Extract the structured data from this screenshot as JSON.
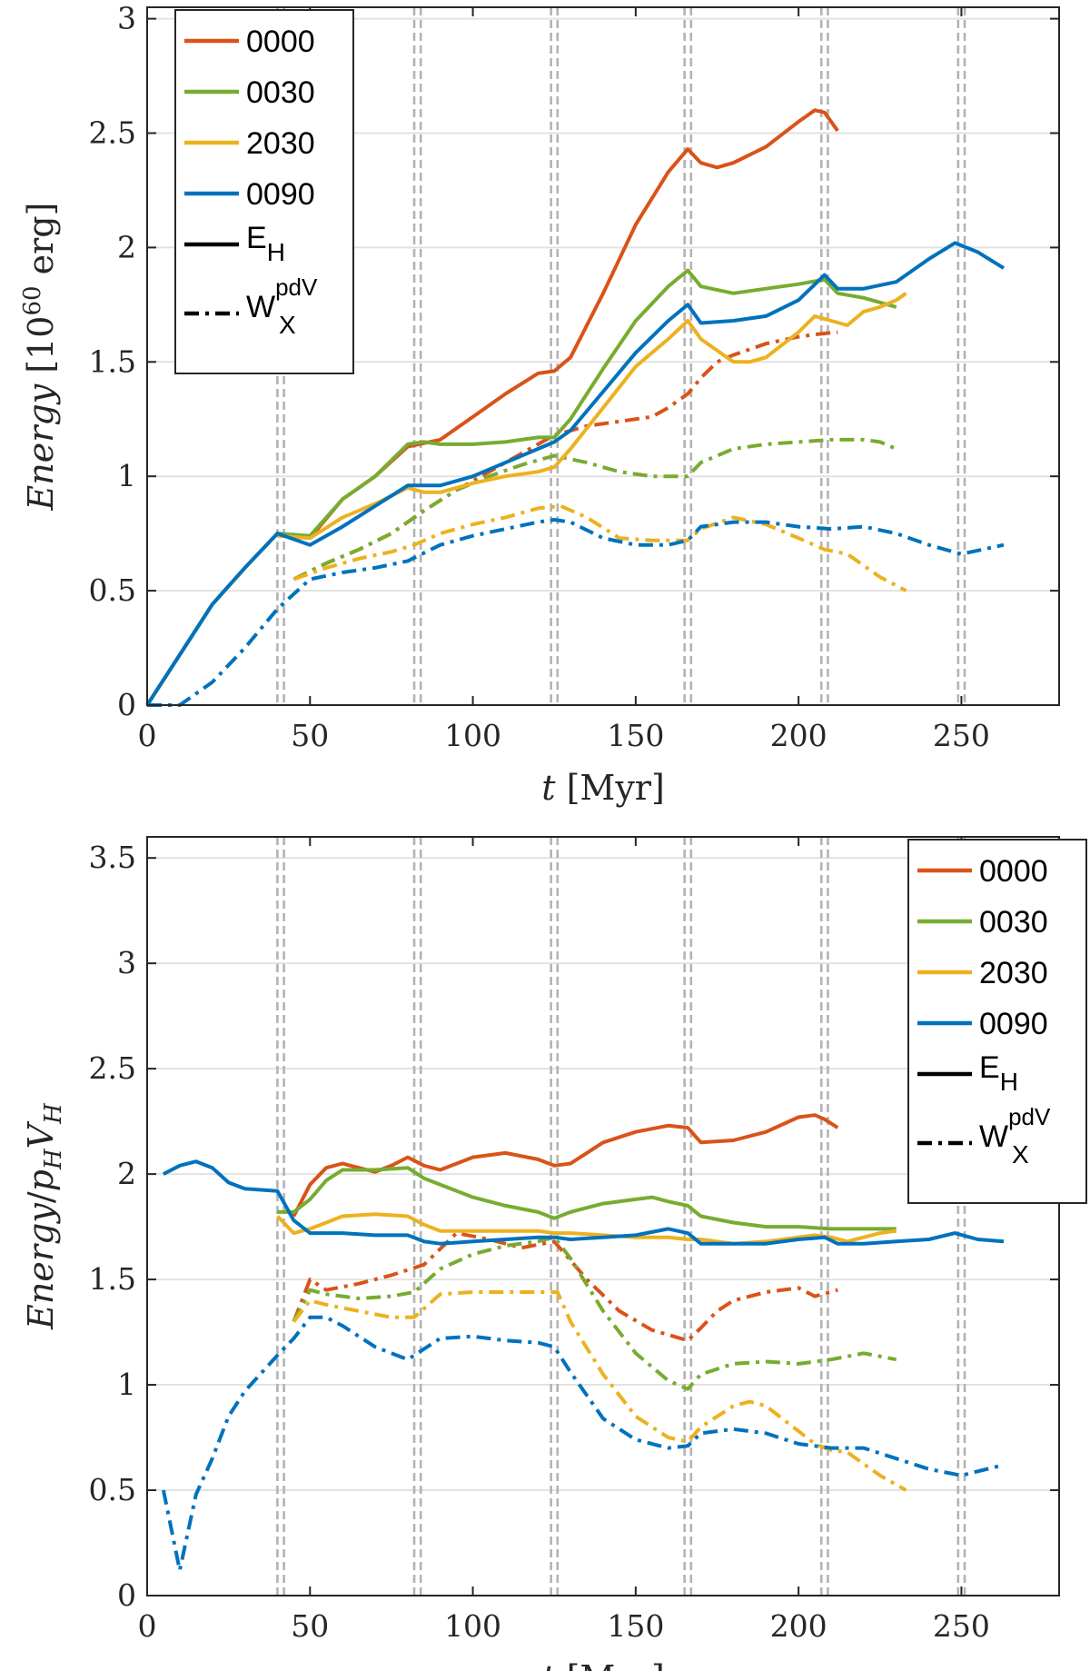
{
  "colors": {
    "0000": "#D95319",
    "0030": "#77AC30",
    "2030": "#EDB120",
    "0090": "#0072BD",
    "grid": "#e2e2e2",
    "vline": "#b3b3b3",
    "axis": "#262626"
  },
  "legend": {
    "runs": [
      "0000",
      "0030",
      "2030",
      "0090"
    ],
    "solid_label": "E",
    "solid_sub": "H",
    "dashed_label": "W",
    "dashed_sub": "X",
    "dashed_sup": "pdV"
  },
  "chart_data": [
    {
      "type": "line",
      "xlabel": "t [Myr]",
      "ylabel": "Energy [10^60 erg]",
      "xlim": [
        0,
        280
      ],
      "ylim": [
        0,
        3.05
      ],
      "xticks": [
        0,
        50,
        100,
        150,
        200,
        250
      ],
      "yticks": [
        0,
        0.5,
        1,
        1.5,
        2,
        2.5,
        3
      ],
      "xtick_labels": [
        "0",
        "50",
        "100",
        "150",
        "200",
        "250"
      ],
      "ytick_labels": [
        "0",
        "0.5",
        "1",
        "1.5",
        "2",
        "2.5",
        "3"
      ],
      "grid": "horizontal",
      "legend_position": "top-left",
      "vertical_markers": [
        40,
        42,
        82,
        84,
        124,
        126,
        165,
        167,
        207,
        209,
        249,
        251
      ],
      "series": [
        {
          "name": "0000",
          "style": "solid",
          "x": [
            0,
            10,
            20,
            30,
            40,
            50,
            60,
            70,
            80,
            90,
            100,
            110,
            120,
            125,
            130,
            140,
            150,
            160,
            166,
            170,
            175,
            180,
            190,
            200,
            205,
            208,
            212
          ],
          "y": [
            0,
            0.22,
            0.44,
            0.6,
            0.75,
            0.73,
            0.9,
            1.0,
            1.13,
            1.16,
            1.26,
            1.36,
            1.45,
            1.46,
            1.52,
            1.8,
            2.1,
            2.33,
            2.43,
            2.37,
            2.35,
            2.37,
            2.44,
            2.55,
            2.6,
            2.59,
            2.51
          ]
        },
        {
          "name": "0000",
          "style": "dashdot",
          "x": [
            45,
            55,
            65,
            75,
            85,
            95,
            105,
            115,
            125,
            135,
            145,
            155,
            160,
            166,
            170,
            175,
            180,
            190,
            200,
            205,
            212
          ],
          "y": [
            0.55,
            0.62,
            0.68,
            0.75,
            0.85,
            0.94,
            1.02,
            1.1,
            1.18,
            1.22,
            1.24,
            1.26,
            1.3,
            1.36,
            1.43,
            1.5,
            1.53,
            1.58,
            1.61,
            1.62,
            1.63
          ]
        },
        {
          "name": "0030",
          "style": "solid",
          "x": [
            0,
            10,
            20,
            30,
            40,
            50,
            60,
            70,
            80,
            85,
            90,
            100,
            110,
            120,
            125,
            130,
            140,
            150,
            160,
            166,
            170,
            180,
            190,
            200,
            208,
            212,
            220,
            230
          ],
          "y": [
            0,
            0.22,
            0.44,
            0.6,
            0.75,
            0.74,
            0.9,
            1.0,
            1.14,
            1.15,
            1.14,
            1.14,
            1.15,
            1.17,
            1.17,
            1.25,
            1.47,
            1.68,
            1.83,
            1.9,
            1.83,
            1.8,
            1.82,
            1.84,
            1.86,
            1.8,
            1.78,
            1.74
          ]
        },
        {
          "name": "0030",
          "style": "dashdot",
          "x": [
            45,
            55,
            65,
            75,
            85,
            95,
            105,
            115,
            125,
            135,
            145,
            155,
            166,
            170,
            180,
            190,
            200,
            210,
            220,
            225,
            230
          ],
          "y": [
            0.55,
            0.62,
            0.68,
            0.75,
            0.85,
            0.94,
            1.0,
            1.05,
            1.09,
            1.06,
            1.02,
            1.0,
            1.0,
            1.06,
            1.12,
            1.14,
            1.15,
            1.16,
            1.16,
            1.15,
            1.12
          ]
        },
        {
          "name": "2030",
          "style": "solid",
          "x": [
            40,
            50,
            60,
            70,
            80,
            85,
            90,
            100,
            110,
            120,
            125,
            130,
            140,
            150,
            160,
            166,
            170,
            175,
            180,
            185,
            190,
            200,
            205,
            210,
            215,
            220,
            225,
            230,
            233
          ],
          "y": [
            0.74,
            0.73,
            0.82,
            0.88,
            0.95,
            0.93,
            0.93,
            0.97,
            1.0,
            1.02,
            1.04,
            1.12,
            1.3,
            1.48,
            1.6,
            1.68,
            1.6,
            1.55,
            1.5,
            1.5,
            1.52,
            1.63,
            1.7,
            1.68,
            1.66,
            1.72,
            1.74,
            1.77,
            1.8
          ]
        },
        {
          "name": "2030",
          "style": "dashdot",
          "x": [
            45,
            55,
            65,
            75,
            82,
            90,
            100,
            110,
            120,
            127,
            135,
            145,
            155,
            166,
            170,
            180,
            190,
            200,
            208,
            215,
            225,
            233
          ],
          "y": [
            0.55,
            0.6,
            0.64,
            0.67,
            0.7,
            0.75,
            0.79,
            0.82,
            0.86,
            0.87,
            0.82,
            0.73,
            0.72,
            0.72,
            0.77,
            0.82,
            0.79,
            0.73,
            0.68,
            0.66,
            0.56,
            0.5
          ]
        },
        {
          "name": "0090",
          "style": "solid",
          "x": [
            0,
            10,
            20,
            30,
            40,
            50,
            60,
            70,
            80,
            90,
            100,
            110,
            120,
            125,
            130,
            140,
            150,
            160,
            166,
            170,
            180,
            190,
            200,
            208,
            212,
            220,
            230,
            240,
            248,
            255,
            263
          ],
          "y": [
            0,
            0.22,
            0.44,
            0.6,
            0.75,
            0.7,
            0.78,
            0.87,
            0.96,
            0.96,
            1.0,
            1.06,
            1.12,
            1.15,
            1.2,
            1.37,
            1.54,
            1.68,
            1.75,
            1.67,
            1.68,
            1.7,
            1.77,
            1.88,
            1.82,
            1.82,
            1.85,
            1.95,
            2.02,
            1.98,
            1.91
          ]
        },
        {
          "name": "0090",
          "style": "dashdot",
          "x": [
            0,
            10,
            20,
            30,
            40,
            50,
            60,
            70,
            80,
            90,
            100,
            110,
            120,
            125,
            130,
            140,
            150,
            160,
            166,
            170,
            180,
            190,
            200,
            210,
            220,
            230,
            240,
            250,
            263
          ],
          "y": [
            0,
            0.0,
            0.1,
            0.25,
            0.42,
            0.55,
            0.58,
            0.6,
            0.63,
            0.7,
            0.74,
            0.77,
            0.8,
            0.81,
            0.8,
            0.73,
            0.7,
            0.7,
            0.72,
            0.78,
            0.8,
            0.8,
            0.78,
            0.77,
            0.78,
            0.75,
            0.7,
            0.66,
            0.7
          ]
        }
      ]
    },
    {
      "type": "line",
      "xlabel": "t [Myr]",
      "ylabel": "Energy / p_H V_H",
      "xlim": [
        0,
        280
      ],
      "ylim": [
        0,
        3.6
      ],
      "xticks": [
        0,
        50,
        100,
        150,
        200,
        250
      ],
      "yticks": [
        0,
        0.5,
        1,
        1.5,
        2,
        2.5,
        3,
        3.5
      ],
      "xtick_labels": [
        "0",
        "50",
        "100",
        "150",
        "200",
        "250"
      ],
      "ytick_labels": [
        "0",
        "0.5",
        "1",
        "1.5",
        "2",
        "2.5",
        "3",
        "3.5"
      ],
      "grid": "horizontal",
      "legend_position": "top-right",
      "vertical_markers": [
        40,
        42,
        82,
        84,
        124,
        126,
        165,
        167,
        207,
        209,
        249,
        251
      ],
      "series": [
        {
          "name": "0000",
          "style": "solid",
          "x": [
            45,
            50,
            55,
            60,
            65,
            70,
            75,
            80,
            85,
            90,
            100,
            110,
            120,
            125,
            130,
            135,
            140,
            150,
            160,
            166,
            170,
            180,
            190,
            200,
            205,
            208,
            212
          ],
          "y": [
            1.8,
            1.95,
            2.03,
            2.05,
            2.03,
            2.01,
            2.04,
            2.08,
            2.04,
            2.02,
            2.08,
            2.1,
            2.07,
            2.04,
            2.05,
            2.1,
            2.15,
            2.2,
            2.23,
            2.22,
            2.15,
            2.16,
            2.2,
            2.27,
            2.28,
            2.26,
            2.22
          ]
        },
        {
          "name": "0000",
          "style": "dashdot",
          "x": [
            45,
            50,
            55,
            65,
            75,
            85,
            95,
            105,
            115,
            125,
            135,
            145,
            155,
            166,
            170,
            175,
            180,
            190,
            200,
            205,
            212
          ],
          "y": [
            1.3,
            1.5,
            1.45,
            1.48,
            1.52,
            1.57,
            1.72,
            1.69,
            1.65,
            1.68,
            1.5,
            1.35,
            1.26,
            1.21,
            1.27,
            1.35,
            1.4,
            1.44,
            1.46,
            1.42,
            1.45
          ]
        },
        {
          "name": "0030",
          "style": "solid",
          "x": [
            40,
            45,
            50,
            55,
            60,
            70,
            80,
            85,
            90,
            100,
            110,
            120,
            125,
            130,
            140,
            150,
            155,
            160,
            166,
            170,
            180,
            190,
            200,
            210,
            220,
            230
          ],
          "y": [
            1.82,
            1.82,
            1.88,
            1.97,
            2.02,
            2.02,
            2.03,
            1.98,
            1.95,
            1.89,
            1.85,
            1.82,
            1.79,
            1.82,
            1.86,
            1.88,
            1.89,
            1.87,
            1.85,
            1.8,
            1.77,
            1.75,
            1.75,
            1.74,
            1.74,
            1.74
          ]
        },
        {
          "name": "0030",
          "style": "dashdot",
          "x": [
            45,
            50,
            55,
            65,
            75,
            82,
            90,
            100,
            110,
            120,
            125,
            130,
            140,
            150,
            160,
            166,
            170,
            180,
            190,
            200,
            210,
            220,
            230
          ],
          "y": [
            1.3,
            1.45,
            1.43,
            1.41,
            1.42,
            1.44,
            1.55,
            1.62,
            1.66,
            1.68,
            1.7,
            1.6,
            1.35,
            1.15,
            1.02,
            0.98,
            1.05,
            1.1,
            1.11,
            1.1,
            1.12,
            1.15,
            1.12
          ]
        },
        {
          "name": "2030",
          "style": "solid",
          "x": [
            40,
            45,
            50,
            55,
            60,
            70,
            80,
            85,
            90,
            100,
            110,
            120,
            125,
            130,
            140,
            150,
            160,
            166,
            170,
            180,
            190,
            200,
            205,
            210,
            215,
            220,
            225,
            230
          ],
          "y": [
            1.8,
            1.72,
            1.74,
            1.77,
            1.8,
            1.81,
            1.8,
            1.76,
            1.73,
            1.73,
            1.73,
            1.73,
            1.72,
            1.72,
            1.71,
            1.7,
            1.7,
            1.69,
            1.69,
            1.67,
            1.68,
            1.7,
            1.71,
            1.7,
            1.68,
            1.7,
            1.72,
            1.73
          ]
        },
        {
          "name": "2030",
          "style": "dashdot",
          "x": [
            45,
            50,
            55,
            65,
            75,
            82,
            90,
            100,
            110,
            120,
            126,
            130,
            140,
            150,
            160,
            166,
            170,
            180,
            185,
            190,
            200,
            205,
            210,
            215,
            225,
            233
          ],
          "y": [
            1.3,
            1.4,
            1.38,
            1.35,
            1.32,
            1.32,
            1.43,
            1.44,
            1.44,
            1.44,
            1.44,
            1.3,
            1.05,
            0.85,
            0.75,
            0.73,
            0.8,
            0.9,
            0.92,
            0.9,
            0.78,
            0.72,
            0.69,
            0.68,
            0.57,
            0.5
          ]
        },
        {
          "name": "0090",
          "style": "solid",
          "x": [
            5,
            10,
            15,
            20,
            25,
            30,
            40,
            45,
            50,
            60,
            70,
            80,
            85,
            90,
            100,
            110,
            120,
            125,
            130,
            140,
            150,
            160,
            166,
            170,
            180,
            190,
            200,
            208,
            212,
            220,
            230,
            240,
            248,
            255,
            263
          ],
          "y": [
            2.0,
            2.04,
            2.06,
            2.03,
            1.96,
            1.93,
            1.92,
            1.78,
            1.72,
            1.72,
            1.71,
            1.71,
            1.68,
            1.67,
            1.68,
            1.69,
            1.7,
            1.7,
            1.69,
            1.7,
            1.71,
            1.74,
            1.72,
            1.67,
            1.67,
            1.67,
            1.69,
            1.7,
            1.67,
            1.67,
            1.68,
            1.69,
            1.72,
            1.69,
            1.68
          ]
        },
        {
          "name": "0090",
          "style": "dashdot",
          "x": [
            5,
            10,
            15,
            20,
            25,
            30,
            40,
            45,
            50,
            55,
            60,
            70,
            80,
            85,
            90,
            100,
            110,
            120,
            125,
            130,
            140,
            150,
            160,
            166,
            170,
            180,
            190,
            200,
            210,
            220,
            230,
            240,
            250,
            263
          ],
          "y": [
            0.5,
            0.12,
            0.48,
            0.65,
            0.85,
            0.97,
            1.14,
            1.22,
            1.32,
            1.32,
            1.28,
            1.18,
            1.12,
            1.17,
            1.22,
            1.23,
            1.21,
            1.2,
            1.18,
            1.06,
            0.84,
            0.74,
            0.7,
            0.71,
            0.77,
            0.79,
            0.77,
            0.72,
            0.7,
            0.7,
            0.65,
            0.6,
            0.57,
            0.62
          ]
        }
      ]
    }
  ]
}
